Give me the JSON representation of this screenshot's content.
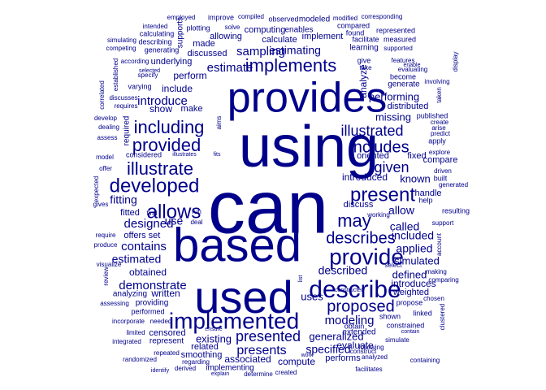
{
  "word_cloud": {
    "color": "#00008B",
    "orientation": "mixed horizontal and vertical",
    "words": [
      "can",
      "using",
      "based",
      "used",
      "provides",
      "implemented",
      "describe",
      "provide",
      "developed",
      "present",
      "allows",
      "may",
      "illustrate",
      "provided",
      "including",
      "implements",
      "describes",
      "proposed",
      "includes",
      "illustrated",
      "presented",
      "given",
      "estimate",
      "estimating",
      "sampling",
      "introduce",
      "designed",
      "modeling",
      "demonstrate",
      "contains",
      "presents",
      "fitting",
      "estimated",
      "use",
      "called",
      "applied",
      "allow",
      "described",
      "included",
      "specified",
      "existing",
      "generalized",
      "missing",
      "known",
      "performing",
      "simulated",
      "defined",
      "uses",
      "introduced",
      "obtained",
      "show",
      "include",
      "written",
      "associated",
      "compute",
      "analyze",
      "introduces",
      "evaluate",
      "perform",
      "computing",
      "calculate",
      "discuss",
      "offers",
      "fitted",
      "made",
      "discussed",
      "underlying",
      "compare",
      "distributed",
      "oriented",
      "fixed",
      "weighted",
      "handle",
      "resulting",
      "performs",
      "smoothing",
      "related",
      "censored",
      "analyzing",
      "providing",
      "implementing",
      "implement",
      "allowing",
      "make",
      "set",
      "extended",
      "generate",
      "become",
      "published",
      "represent",
      "considered",
      "required",
      "learning",
      "supports",
      "constrained",
      "shown",
      "learning2",
      "propose",
      "built",
      "generated",
      "enables",
      "modeled",
      "observed",
      "compiled",
      "improve",
      "employed",
      "modified",
      "corresponding",
      "compared",
      "found",
      "represented",
      "facilitate",
      "measured",
      "supported",
      "features",
      "evaluating",
      "enable",
      "involving",
      "display",
      "taken",
      "published2",
      "create",
      "arise",
      "predict",
      "apply",
      "explore",
      "driven",
      "help",
      "working",
      "support",
      "account",
      "select",
      "making",
      "comparing",
      "chosen",
      "clustered",
      "contain",
      "simulate",
      "containing",
      "facilitates",
      "analyzed",
      "following",
      "construct",
      "work",
      "created",
      "determine",
      "derived",
      "identify",
      "regarding",
      "explain",
      "randomized",
      "integrated",
      "limited",
      "incorporate",
      "assessing",
      "visualize",
      "review",
      "produce",
      "require",
      "gives",
      "expected",
      "offer",
      "model",
      "dealing",
      "develop",
      "assess",
      "correlated",
      "discusses",
      "requires",
      "varying",
      "specify",
      "selected",
      "according",
      "established",
      "simulating",
      "competing",
      "describing",
      "generating",
      "calculating",
      "intended",
      "plotting",
      "solve",
      "aims",
      "fits",
      "illustrates",
      "run",
      "find",
      "deal",
      "needed",
      "performed",
      "repeated",
      "ensure",
      "obtain",
      "linked",
      "constructed",
      "list",
      "give",
      "take",
      "testing",
      "estimating2"
    ]
  }
}
